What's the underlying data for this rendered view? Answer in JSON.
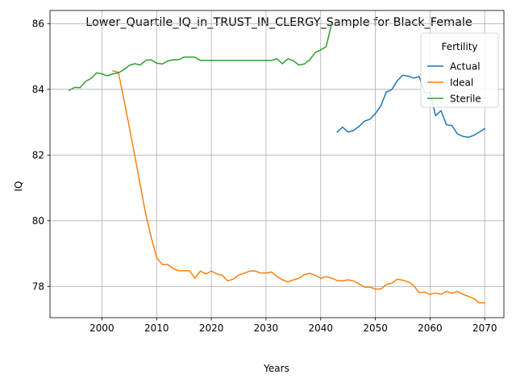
{
  "chart_data": {
    "type": "line",
    "title": "Lower_Quartile_IQ_in_TRUST_IN_CLERGY_Sample for Black_Female",
    "xlabel": "Years",
    "ylabel": "IQ",
    "xlim": [
      1990.5,
      2073.5
    ],
    "ylim": [
      77.05,
      86.4
    ],
    "xticks": [
      2000,
      2010,
      2020,
      2030,
      2040,
      2050,
      2060,
      2070
    ],
    "yticks": [
      78,
      80,
      82,
      84,
      86
    ],
    "grid": true,
    "legend": {
      "title": "Fertility",
      "position": "top-right"
    },
    "series": [
      {
        "name": "Actual",
        "color": "#1f77b4",
        "x": [
          2043,
          2044,
          2045,
          2046,
          2047,
          2048,
          2049,
          2050,
          2051,
          2052,
          2053,
          2054,
          2055,
          2056,
          2057,
          2058,
          2059,
          2060,
          2061,
          2062,
          2063,
          2064,
          2065,
          2066,
          2067,
          2068,
          2069,
          2070
        ],
        "y": [
          82.7,
          82.85,
          82.7,
          82.75,
          82.87,
          83.03,
          83.09,
          83.26,
          83.5,
          83.92,
          83.99,
          84.26,
          84.43,
          84.4,
          84.34,
          84.39,
          83.9,
          83.9,
          83.2,
          83.35,
          82.92,
          82.9,
          82.64,
          82.57,
          82.54,
          82.6,
          82.7,
          82.8
        ]
      },
      {
        "name": "Ideal",
        "color": "#ff7f0e",
        "x": [
          2002,
          2003,
          2004,
          2005,
          2006,
          2007,
          2008,
          2009,
          2010,
          2011,
          2012,
          2013,
          2014,
          2015,
          2016,
          2017,
          2018,
          2019,
          2020,
          2021,
          2022,
          2023,
          2024,
          2025,
          2026,
          2027,
          2028,
          2029,
          2030,
          2031,
          2032,
          2033,
          2034,
          2035,
          2036,
          2037,
          2038,
          2039,
          2040,
          2041,
          2042,
          2043,
          2044,
          2045,
          2046,
          2047,
          2048,
          2049,
          2050,
          2051,
          2052,
          2053,
          2054,
          2055,
          2056,
          2057,
          2058,
          2059,
          2060,
          2061,
          2062,
          2063,
          2064,
          2065,
          2066,
          2067,
          2068,
          2069,
          2070
        ],
        "y": [
          84.56,
          84.52,
          83.7,
          82.85,
          81.98,
          81.1,
          80.2,
          79.5,
          78.88,
          78.67,
          78.67,
          78.55,
          78.48,
          78.48,
          78.48,
          78.25,
          78.47,
          78.38,
          78.47,
          78.38,
          78.34,
          78.17,
          78.22,
          78.35,
          78.4,
          78.47,
          78.47,
          78.41,
          78.41,
          78.44,
          78.3,
          78.2,
          78.14,
          78.2,
          78.25,
          78.36,
          78.4,
          78.34,
          78.25,
          78.3,
          78.25,
          78.18,
          78.17,
          78.2,
          78.17,
          78.08,
          77.98,
          77.98,
          77.92,
          77.92,
          78.06,
          78.1,
          78.22,
          78.19,
          78.14,
          78.03,
          77.81,
          77.83,
          77.76,
          77.8,
          77.76,
          77.85,
          77.79,
          77.85,
          77.76,
          77.7,
          77.63,
          77.5,
          77.5
        ]
      },
      {
        "name": "Sterile",
        "color": "#2ca02c",
        "x": [
          1994,
          1995,
          1996,
          1997,
          1998,
          1999,
          2000,
          2001,
          2002,
          2003,
          2004,
          2005,
          2006,
          2007,
          2008,
          2009,
          2010,
          2011,
          2012,
          2013,
          2014,
          2015,
          2016,
          2017,
          2018,
          2019,
          2020,
          2021,
          2022,
          2023,
          2024,
          2025,
          2026,
          2027,
          2028,
          2029,
          2030,
          2031,
          2032,
          2033,
          2034,
          2035,
          2036,
          2037,
          2038,
          2039,
          2040,
          2041,
          2042
        ],
        "y": [
          83.97,
          84.06,
          84.05,
          84.24,
          84.33,
          84.5,
          84.47,
          84.41,
          84.47,
          84.5,
          84.6,
          84.73,
          84.78,
          84.74,
          84.88,
          84.9,
          84.8,
          84.77,
          84.86,
          84.9,
          84.9,
          84.98,
          84.98,
          84.98,
          84.88,
          84.88,
          84.88,
          84.88,
          84.88,
          84.88,
          84.88,
          84.88,
          84.88,
          84.88,
          84.88,
          84.88,
          84.88,
          84.88,
          84.93,
          84.78,
          84.93,
          84.87,
          84.74,
          84.77,
          84.9,
          85.12,
          85.2,
          85.3,
          86.0
        ]
      }
    ]
  }
}
